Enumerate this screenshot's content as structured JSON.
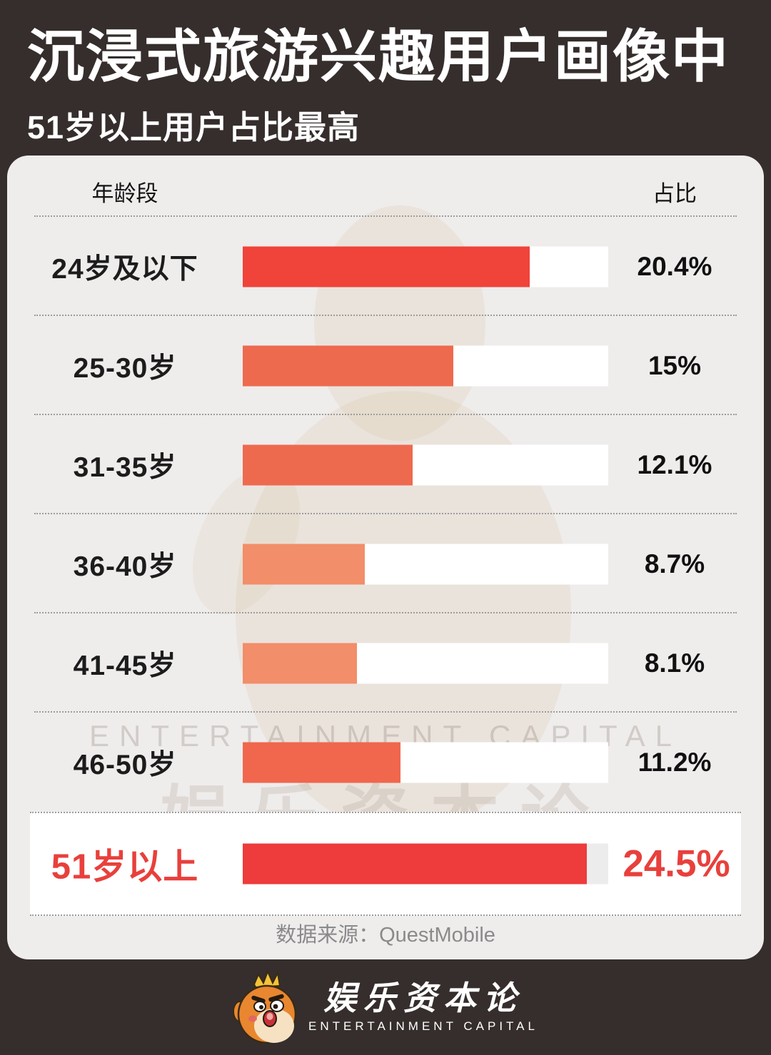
{
  "header": {
    "title": "沉浸式旅游兴趣用户画像中",
    "subtitle": "51岁以上用户占比最高"
  },
  "table_headers": {
    "age": "年龄段",
    "share": "占比"
  },
  "chart_data": {
    "type": "bar",
    "orientation": "horizontal",
    "title": "沉浸式旅游兴趣用户画像中51岁以上用户占比最高",
    "xlabel": "占比",
    "ylabel": "年龄段",
    "axis_max_percent": 26,
    "grid": false,
    "rows": [
      {
        "label": "24岁及以下",
        "value": 20.4,
        "display": "20.4%",
        "color": "#f0433a",
        "highlight": false
      },
      {
        "label": "25-30岁",
        "value": 15,
        "display": "15%",
        "color": "#ee6a4f",
        "highlight": false
      },
      {
        "label": "31-35岁",
        "value": 12.1,
        "display": "12.1%",
        "color": "#ee6a4f",
        "highlight": false
      },
      {
        "label": "36-40岁",
        "value": 8.7,
        "display": "8.7%",
        "color": "#f28e69",
        "highlight": false
      },
      {
        "label": "41-45岁",
        "value": 8.1,
        "display": "8.1%",
        "color": "#f28e69",
        "highlight": false
      },
      {
        "label": "46-50岁",
        "value": 11.2,
        "display": "11.2%",
        "color": "#f0674d",
        "highlight": false
      },
      {
        "label": "51岁以上",
        "value": 24.5,
        "display": "24.5%",
        "color": "#ee3b3b",
        "highlight": true
      }
    ]
  },
  "source": {
    "text": "数据来源：QuestMobile"
  },
  "watermark": {
    "text_en": "ENTERTAINMENT CAPITAL",
    "text_cn": "娱乐资本论"
  },
  "footer": {
    "brand_cn": "娱乐资本论",
    "brand_en": "ENTERTAINMENT CAPITAL"
  },
  "colors": {
    "background": "#352e2d",
    "card": "#efecec",
    "highlight_red": "#e8403c",
    "bar_track_white": "#ffffff",
    "bar_track_gray": "#ececec",
    "separator": "#9c9c9c",
    "source_text": "#8a8a8a"
  }
}
